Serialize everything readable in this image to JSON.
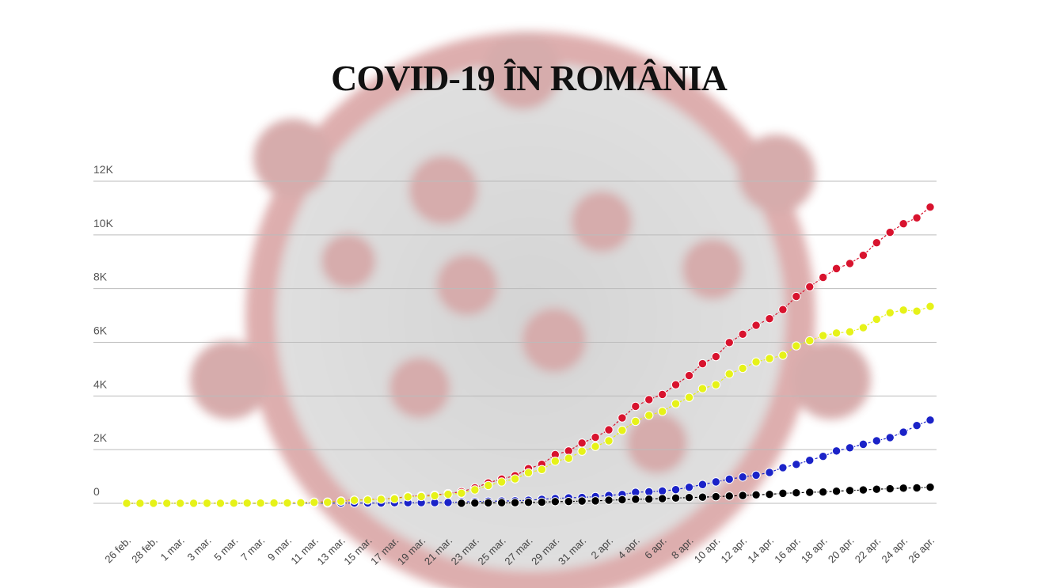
{
  "chart_data": {
    "type": "line",
    "title": "COVID-19 ÎN ROMÂNIA",
    "categories": [
      "26 feb.",
      null,
      "28 feb.",
      null,
      "1 mar.",
      null,
      "3 mar.",
      null,
      "5 mar.",
      null,
      "7 mar.",
      null,
      "9 mar.",
      null,
      "11 mar.",
      null,
      "13 mar.",
      null,
      "15 mar.",
      null,
      "17 mar.",
      null,
      "19 mar.",
      null,
      "21 mar.",
      null,
      "23 mar.",
      null,
      "25 mar.",
      null,
      "27 mar.",
      null,
      "29 mar.",
      null,
      "31 mar.",
      null,
      "2 apr.",
      null,
      "4 apr.",
      null,
      "6 apr.",
      null,
      "8 apr.",
      null,
      "10 apr.",
      null,
      "12 apr.",
      null,
      "14 apr.",
      null,
      "16 apr.",
      null,
      "18 apr.",
      null,
      "20 apr.",
      null,
      "22 apr.",
      null,
      "24 apr.",
      null,
      "26 apr."
    ],
    "series": [
      {
        "color": "#d8132e",
        "values": [
          1,
          1,
          3,
          3,
          3,
          3,
          4,
          4,
          6,
          9,
          9,
          15,
          15,
          25,
          45,
          49,
          89,
          123,
          131,
          158,
          184,
          260,
          277,
          308,
          367,
          433,
          576,
          762,
          906,
          1029,
          1292,
          1452,
          1815,
          1952,
          2245,
          2460,
          2738,
          3183,
          3613,
          3864,
          4057,
          4417,
          4761,
          5202,
          5467,
          5990,
          6300,
          6633,
          6879,
          7216,
          7707,
          8067,
          8418,
          8746,
          8936,
          9242,
          9710,
          10096,
          10417,
          10635,
          11036
        ]
      },
      {
        "color": "#1b23c8",
        "values": [
          0,
          0,
          0,
          0,
          0,
          0,
          0,
          1,
          1,
          1,
          1,
          3,
          3,
          6,
          9,
          9,
          9,
          9,
          9,
          9,
          19,
          19,
          25,
          25,
          31,
          52,
          64,
          79,
          86,
          94,
          115,
          150,
          180,
          206,
          220,
          252,
          294,
          330,
          410,
          430,
          460,
          510,
          600,
          700,
          800,
          900,
          980,
          1050,
          1150,
          1330,
          1450,
          1600,
          1750,
          1950,
          2070,
          2200,
          2330,
          2450,
          2650,
          2900,
          3100
        ]
      },
      {
        "color": "#000000",
        "values": [
          null,
          null,
          null,
          null,
          null,
          null,
          null,
          null,
          null,
          null,
          null,
          null,
          null,
          null,
          null,
          null,
          null,
          null,
          null,
          null,
          null,
          null,
          null,
          null,
          null,
          3,
          11,
          17,
          22,
          24,
          37,
          43,
          65,
          69,
          85,
          92,
          115,
          133,
          151,
          158,
          176,
          197,
          215,
          229,
          249,
          270,
          291,
          316,
          335,
          372,
          392,
          411,
          421,
          451,
          478,
          498,
          524,
          545,
          567,
          575,
          601
        ]
      },
      {
        "color": "#e6f218",
        "values": [
          1,
          1,
          3,
          3,
          3,
          3,
          4,
          3,
          5,
          8,
          8,
          12,
          12,
          19,
          36,
          40,
          80,
          114,
          122,
          149,
          165,
          241,
          252,
          283,
          336,
          378,
          501,
          666,
          798,
          911,
          1140,
          1259,
          1570,
          1677,
          1940,
          2116,
          2329,
          2720,
          3052,
          3276,
          3421,
          3710,
          3946,
          4273,
          4418,
          4820,
          5029,
          5267,
          5394,
          5514,
          5865,
          6056,
          6247,
          6345,
          6388,
          6544,
          6856,
          7101,
          7200,
          7160,
          7335
        ]
      }
    ],
    "ylim": [
      0,
      12000
    ],
    "yticks": [
      0,
      {
        "value": 2000,
        "label": "2K"
      },
      {
        "value": 4000,
        "label": "4K"
      },
      {
        "value": 6000,
        "label": "6K"
      },
      {
        "value": 8000,
        "label": "8K"
      },
      {
        "value": 10000,
        "label": "10K"
      },
      {
        "value": 12000,
        "label": "12K"
      }
    ],
    "grid": true
  }
}
